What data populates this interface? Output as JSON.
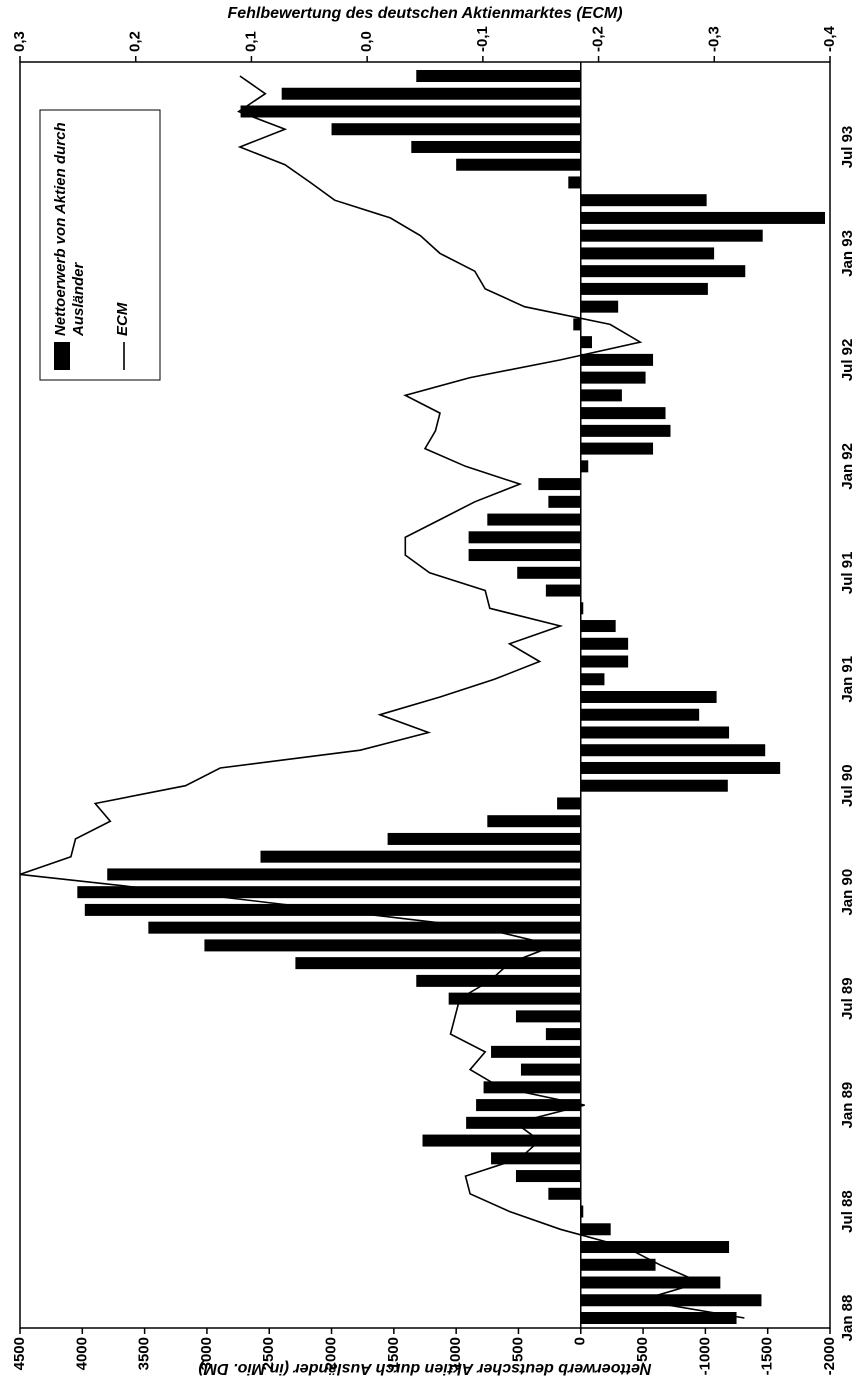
{
  "chart_data": {
    "type": "bar_line",
    "y_label": "Nettoerwerb deutscher Aktien durch Ausländer (in Mio. DM)",
    "y2_label": "Fehlbewertung des deutschen Aktienmarktes (ECM)",
    "categories": [
      "Jan 88",
      null,
      null,
      null,
      null,
      null,
      "Jul 88",
      null,
      null,
      null,
      null,
      null,
      "Jan 89",
      null,
      null,
      null,
      null,
      null,
      "Jul 89",
      null,
      null,
      null,
      null,
      null,
      "Jan 90",
      null,
      null,
      null,
      null,
      null,
      "Jul 90",
      null,
      null,
      null,
      null,
      null,
      "Jan 91",
      null,
      null,
      null,
      null,
      null,
      "Jul 91",
      null,
      null,
      null,
      null,
      null,
      "Jan 92",
      null,
      null,
      null,
      null,
      null,
      "Jul 92",
      null,
      null,
      null,
      null,
      null,
      "Jan 93",
      null,
      null,
      null,
      null,
      null,
      "Jul 93",
      null,
      null,
      null,
      null
    ],
    "series": [
      {
        "name": "Nettoerwerb von Aktien durch Ausländer",
        "type": "bar",
        "color": "#000000",
        "values": [
          -1250,
          -1450,
          -1120,
          -600,
          -1190,
          -240,
          -20,
          260,
          520,
          720,
          1270,
          920,
          840,
          780,
          480,
          720,
          280,
          520,
          1060,
          1320,
          2290,
          3020,
          3470,
          3980,
          4040,
          3800,
          2570,
          1550,
          750,
          190,
          -1180,
          -1600,
          -1480,
          -1190,
          -950,
          -1090,
          -190,
          -380,
          -380,
          -280,
          -20,
          280,
          510,
          900,
          900,
          750,
          260,
          340,
          -60,
          -580,
          -720,
          -680,
          -330,
          -520,
          -580,
          -90,
          60,
          -300,
          -1020,
          -1320,
          -1070,
          -1460,
          -1960,
          -1010,
          100,
          1000,
          1360,
          2000,
          2730,
          2400,
          1320
        ]
      },
      {
        "name": "ECM",
        "type": "line",
        "axis": "y2",
        "color": "#000000",
        "values": [
          -0.326,
          -0.236,
          -0.288,
          -0.253,
          -0.223,
          -0.167,
          -0.123,
          -0.089,
          -0.085,
          -0.132,
          -0.149,
          -0.128,
          -0.188,
          -0.115,
          -0.089,
          -0.102,
          -0.072,
          -0.076,
          -0.08,
          -0.106,
          -0.123,
          -0.162,
          -0.098,
          0.032,
          0.161,
          0.3,
          0.256,
          0.252,
          0.222,
          0.235,
          0.157,
          0.127,
          0.006,
          -0.053,
          -0.011,
          -0.063,
          -0.11,
          -0.149,
          -0.123,
          -0.167,
          -0.106,
          -0.102,
          -0.054,
          -0.033,
          -0.033,
          -0.063,
          -0.093,
          -0.132,
          -0.085,
          -0.05,
          -0.059,
          -0.063,
          -0.033,
          -0.089,
          -0.167,
          -0.236,
          -0.21,
          -0.136,
          -0.102,
          -0.093,
          -0.063,
          -0.046,
          -0.02,
          0.028,
          0.049,
          0.071,
          0.11,
          0.071,
          0.111,
          0.088,
          0.11
        ]
      }
    ],
    "ylim": [
      -2000,
      4500
    ],
    "yticks": [
      -2000,
      -1500,
      -1000,
      -500,
      0,
      500,
      1000,
      1500,
      2000,
      2500,
      3000,
      3500,
      4000,
      4500
    ],
    "y2lim": [
      -0.4,
      0.3
    ],
    "y2ticks": [
      {
        "value": -0.4,
        "label": "-0,4"
      },
      {
        "value": -0.3,
        "label": "-0,3"
      },
      {
        "value": -0.2,
        "label": "-0,2"
      },
      {
        "value": -0.1,
        "label": "-0,1"
      },
      {
        "value": 0,
        "label": "0,0"
      },
      {
        "value": 0.1,
        "label": "0,1"
      },
      {
        "value": 0.2,
        "label": "0,2"
      },
      {
        "value": 0.3,
        "label": "0,3"
      }
    ],
    "legend": "upper right"
  }
}
